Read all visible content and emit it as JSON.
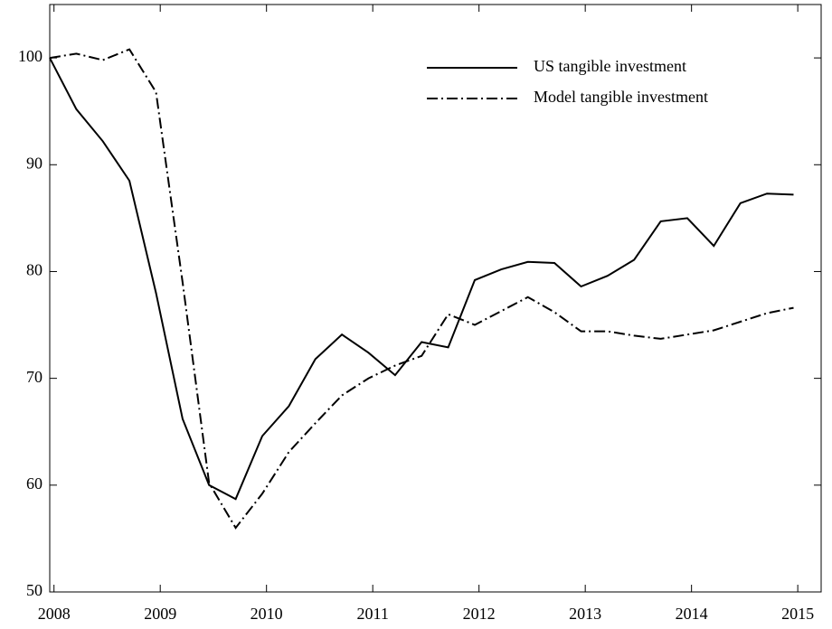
{
  "chart_data": {
    "type": "line",
    "x": [
      2007.96,
      2008.21,
      2008.46,
      2008.71,
      2008.96,
      2009.21,
      2009.46,
      2009.71,
      2009.96,
      2010.21,
      2010.46,
      2010.71,
      2010.96,
      2011.21,
      2011.46,
      2011.71,
      2011.96,
      2012.21,
      2012.46,
      2012.71,
      2012.96,
      2013.21,
      2013.46,
      2013.71,
      2013.96,
      2014.21,
      2014.46,
      2014.71,
      2014.96
    ],
    "series": [
      {
        "name": "US tangible investment",
        "color": "#000000",
        "dash": "solid",
        "values": [
          100,
          95.2,
          92.2,
          88.5,
          78,
          66.2,
          60,
          58.7,
          64.6,
          67.4,
          71.8,
          74.1,
          72.4,
          70.3,
          73.4,
          72.9,
          79.2,
          80.2,
          80.9,
          80.8,
          78.6,
          79.6,
          81.1,
          84.7,
          85.0,
          82.4,
          86.4,
          87.3,
          87.2
        ]
      },
      {
        "name": "Model tangible investment",
        "color": "#000000",
        "dash": "dashdot",
        "values": [
          100,
          100.4,
          99.8,
          100.8,
          96.8,
          79,
          60.2,
          56.0,
          59.2,
          63.1,
          65.8,
          68.4,
          70.0,
          71.2,
          72.1,
          76.0,
          75.0,
          76.3,
          77.6,
          76.2,
          74.4,
          74.4,
          74.0,
          73.7,
          74.1,
          74.5,
          75.3,
          76.1,
          76.6
        ]
      }
    ],
    "xlim": [
      2007.96,
      2015.22
    ],
    "xticks": [
      2008,
      2009,
      2010,
      2011,
      2012,
      2013,
      2014,
      2015
    ],
    "ylim": [
      50,
      105
    ],
    "yticks": [
      50,
      60,
      70,
      80,
      90,
      100
    ],
    "legend": "upper right"
  }
}
